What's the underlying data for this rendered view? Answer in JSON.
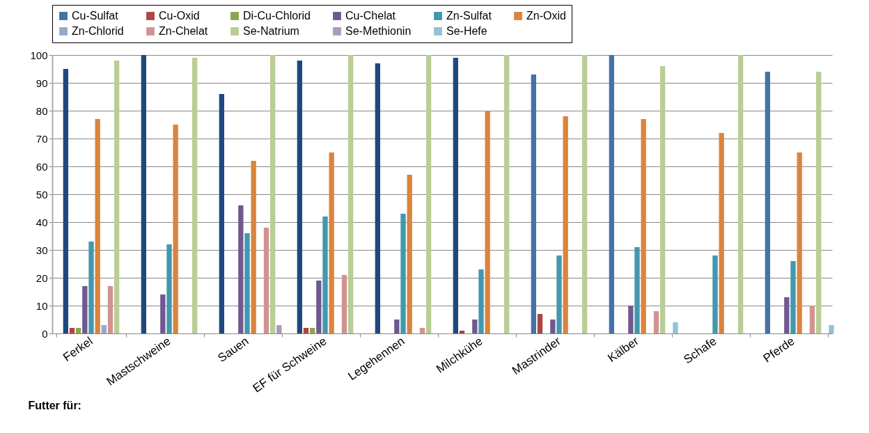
{
  "chart_data": {
    "type": "bar",
    "xlabel": "Futter für:",
    "categories": [
      "Ferkel",
      "Mastschweine",
      "Sauen",
      "EF für Schweine",
      "Legehennen",
      "Milchkühe",
      "Mastrinder",
      "Kälber",
      "Schafe",
      "Pferde"
    ],
    "series": [
      {
        "name": "Cu-Sulfat",
        "color": "#4572a7",
        "colors": [
          "#1f497d",
          "#1f497d",
          "#1f497d",
          "#1f497d",
          "#1f497d",
          "#1f497d",
          "#4572a7",
          "#4572a7",
          null,
          "#4572a7"
        ],
        "values": [
          95,
          100,
          86,
          98,
          97,
          99,
          93,
          100,
          null,
          94
        ]
      },
      {
        "name": "Cu-Oxid",
        "color": "#aa4643",
        "values": [
          2,
          null,
          null,
          2,
          null,
          1,
          7,
          null,
          null,
          null
        ]
      },
      {
        "name": "Di-Cu-Chlorid",
        "color": "#89a54e",
        "values": [
          2,
          null,
          null,
          2,
          null,
          null,
          null,
          null,
          null,
          null
        ]
      },
      {
        "name": "Cu-Chelat",
        "color": "#71588f",
        "values": [
          17,
          14,
          46,
          19,
          5,
          5,
          5,
          10,
          null,
          13
        ]
      },
      {
        "name": "Zn-Sulfat",
        "color": "#4198af",
        "values": [
          33,
          32,
          36,
          42,
          43,
          23,
          28,
          31,
          28,
          26
        ]
      },
      {
        "name": "Zn-Oxid",
        "color": "#db843d",
        "values": [
          77,
          75,
          62,
          65,
          57,
          80,
          78,
          77,
          72,
          65
        ]
      },
      {
        "name": "Zn-Chlorid",
        "color": "#93a9cf",
        "values": [
          3,
          null,
          null,
          null,
          null,
          null,
          null,
          null,
          null,
          null
        ]
      },
      {
        "name": "Zn-Chelat",
        "color": "#d19392",
        "values": [
          17,
          null,
          38,
          21,
          2,
          null,
          null,
          8,
          null,
          10
        ]
      },
      {
        "name": "Se-Natrium",
        "color": "#b9cd96",
        "values": [
          98,
          99,
          100,
          100,
          100,
          100,
          100,
          96,
          100,
          94
        ]
      },
      {
        "name": "Se-Methionin",
        "color": "#a99bbd",
        "values": [
          null,
          null,
          3,
          null,
          null,
          null,
          null,
          null,
          null,
          null
        ]
      },
      {
        "name": "Se-Hefe",
        "color": "#92c3d5",
        "values": [
          null,
          null,
          null,
          null,
          null,
          null,
          null,
          4,
          null,
          3
        ]
      }
    ],
    "ylim": [
      0,
      100
    ],
    "yticks": [
      0,
      10,
      20,
      30,
      40,
      50,
      60,
      70,
      80,
      90,
      100
    ],
    "grid": "y",
    "legend": "top"
  }
}
